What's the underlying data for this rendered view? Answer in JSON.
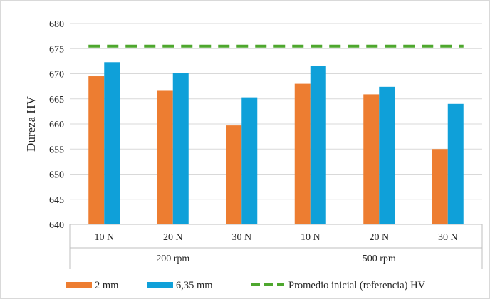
{
  "chart_data": {
    "type": "bar",
    "ylabel": "Dureza HV",
    "xlabel": "",
    "ylim": [
      640,
      680
    ],
    "yticks": [
      640,
      645,
      650,
      655,
      660,
      665,
      670,
      675,
      680
    ],
    "grid": true,
    "groups": [
      {
        "label": "200 rpm",
        "categories": [
          "10 N",
          "20 N",
          "30 N"
        ]
      },
      {
        "label": "500 rpm",
        "categories": [
          "10 N",
          "20 N",
          "30 N"
        ]
      }
    ],
    "series": [
      {
        "name": "2 mm",
        "color": "#ED7D31",
        "values": [
          669.5,
          666.6,
          659.7,
          668.0,
          665.9,
          655.0
        ]
      },
      {
        "name": "6,35 mm",
        "color": "#0FA0D9",
        "values": [
          672.3,
          670.1,
          665.3,
          671.6,
          667.4,
          664.0
        ]
      }
    ],
    "reference": {
      "name": "Promedio inicial (referencia) HV",
      "value": 675.5,
      "color": "#4EA72E",
      "style": "dashed"
    },
    "legend_position": "bottom"
  }
}
